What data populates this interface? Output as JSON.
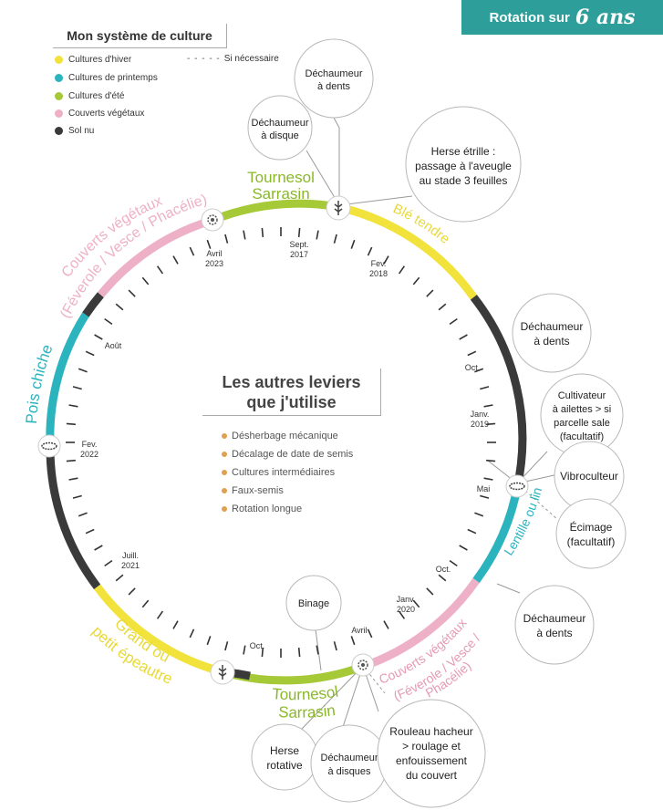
{
  "banner": {
    "text": "Rotation sur",
    "number": "6 ans"
  },
  "legend": {
    "title": "Mon système de culture",
    "items": [
      {
        "label": "Cultures d'hiver",
        "color": "#f2e23c"
      },
      {
        "label": "Cultures de printemps",
        "color": "#2bb3be"
      },
      {
        "label": "Cultures d'été",
        "color": "#a6c938"
      },
      {
        "label": "Couverts végétaux",
        "color": "#eeb0c6"
      },
      {
        "label": "Sol nu",
        "color": "#3a3a3a"
      }
    ],
    "optional_label": "Si nécessaire"
  },
  "center": {
    "title_line1": "Les autres leviers",
    "title_line2": "que j'utilise",
    "levers": [
      "Désherbage mécanique",
      "Décalage de date de semis",
      "Cultures intermédiaires",
      "Faux-semis",
      "Rotation longue"
    ]
  },
  "crops": {
    "tournesol_top_1": "Tournesol",
    "tournesol_top_2": "Sarrasin",
    "ble": "Blé tendre",
    "lentille": "Lentille ou lin",
    "couverts_right_1": "Couverts végétaux",
    "couverts_right_2": "(Féverole / Vesce /",
    "couverts_right_3": "Phacélie)",
    "tournesol_bottom_1": "Tournesol",
    "tournesol_bottom_2": "Sarrasin",
    "grand_1": "Grand ou",
    "grand_2": "petit épeautre",
    "pois": "Pois chiche",
    "couverts_left_1": "Couverts végétaux",
    "couverts_left_2": "(Féverole / Vesce / Phacélie)"
  },
  "dates": {
    "sept": "Sept.",
    "y2017": "2017",
    "fev": "Fev.",
    "y2018": "2018",
    "oct": "Oct.",
    "janv": "Janv.",
    "y2019": "2019",
    "mai": "Mai",
    "oct2": "Oct.",
    "janv2": "Janv.",
    "y2020": "2020",
    "avril": "Avril",
    "oct3": "Oct.",
    "juill": "Juill.",
    "y2021": "2021",
    "fev2": "Fev.",
    "y2022": "2022",
    "aout": "Août",
    "avril2": "Avril",
    "y2023": "2023"
  },
  "tools": {
    "dechaumeur_dents_top_1": "Déchaumeur",
    "dechaumeur_dents_top_2": "à dents",
    "dechaumeur_disque_1": "Déchaumeur",
    "dechaumeur_disque_2": "à disque",
    "herse_1": "Herse étrille :",
    "herse_2": "passage à l'aveugle",
    "herse_3": "au stade 3 feuilles",
    "dechaumeur_dents_r_1": "Déchaumeur",
    "dechaumeur_dents_r_2": "à dents",
    "cultivateur_1": "Cultivateur",
    "cultivateur_2": "à ailettes > si",
    "cultivateur_3": "parcelle sale",
    "cultivateur_4": "(facultatif)",
    "vibroculteur": "Vibroculteur",
    "ecimage_1": "Écimage",
    "ecimage_2": "(facultatif)",
    "dechaumeur_dents_br_1": "Déchaumeur",
    "dechaumeur_dents_br_2": "à dents",
    "binage": "Binage",
    "herse_rot_1": "Herse",
    "herse_rot_2": "rotative",
    "dechaumeur_disques_1": "Déchaumeur",
    "dechaumeur_disques_2": "à disques",
    "rouleau_1": "Rouleau hacheur",
    "rouleau_2": "> roulage et",
    "rouleau_3": "enfouissement",
    "rouleau_4": "du couvert"
  }
}
